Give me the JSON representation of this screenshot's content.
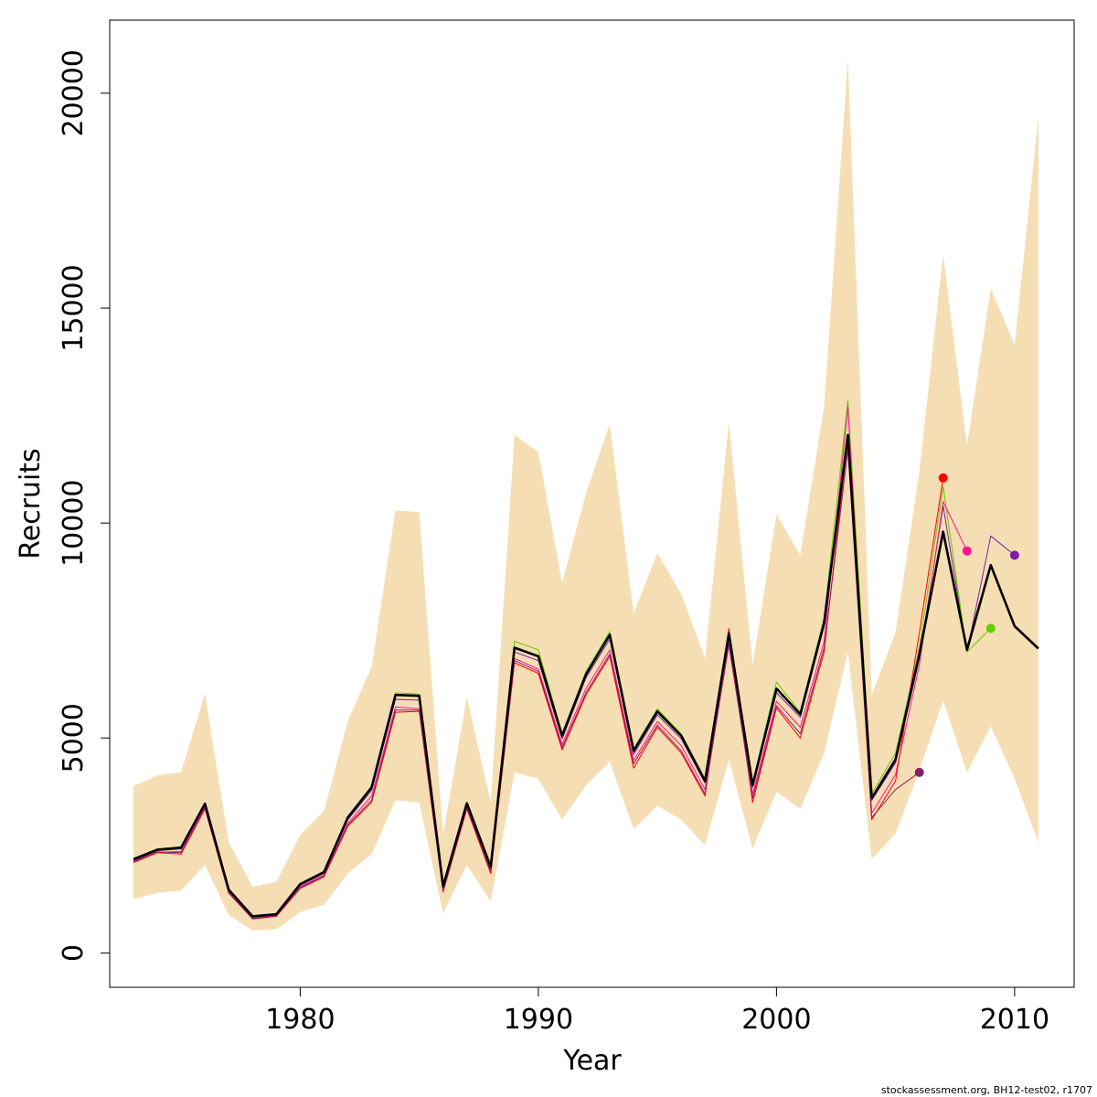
{
  "chart_data": {
    "type": "line",
    "xlabel": "Year",
    "ylabel": "Recruits",
    "xlim": [
      1972,
      2012.5
    ],
    "ylim": [
      -800,
      21700
    ],
    "x_ticks": [
      1980,
      1990,
      2000,
      2010
    ],
    "y_ticks": [
      0,
      5000,
      10000,
      15000,
      20000
    ],
    "grid": false,
    "legend": "none",
    "footer": "stockassessment.org, BH12-test02, r1707",
    "colors": {
      "band": "#f5deb3",
      "main": "#000000",
      "peel_2010": "#7a1fa2",
      "peel_2009": "#66cc00",
      "peel_2008": "#ff1493",
      "peel_2007": "#ff0000",
      "peel_2006": "#8b1a6b"
    },
    "years": [
      1973,
      1974,
      1975,
      1976,
      1977,
      1978,
      1979,
      1980,
      1981,
      1982,
      1983,
      1984,
      1985,
      1986,
      1987,
      1988,
      1989,
      1990,
      1991,
      1992,
      1993,
      1994,
      1995,
      1996,
      1997,
      1998,
      1999,
      2000,
      2001,
      2002,
      2003,
      2004,
      2005,
      2006,
      2007,
      2008,
      2009,
      2010,
      2011
    ],
    "confidence_band": {
      "upper": [
        3880,
        4130,
        4200,
        6030,
        2580,
        1540,
        1650,
        2750,
        3300,
        5400,
        6650,
        10300,
        10250,
        2750,
        5950,
        3500,
        12050,
        11650,
        8600,
        10700,
        12300,
        7900,
        9300,
        8350,
        6850,
        12350,
        6700,
        10200,
        9250,
        12700,
        20800,
        6000,
        7450,
        11200,
        16250,
        11800,
        15450,
        14150,
        19450
      ],
      "lower": [
        1250,
        1400,
        1450,
        2050,
        880,
        520,
        550,
        950,
        1120,
        1850,
        2300,
        3550,
        3500,
        920,
        2050,
        1200,
        4200,
        4050,
        3100,
        3900,
        4450,
        2880,
        3420,
        3100,
        2500,
        4500,
        2430,
        3750,
        3350,
        4650,
        7000,
        2180,
        2780,
        4250,
        5870,
        4200,
        5270,
        4050,
        2580
      ]
    },
    "series": [
      {
        "color_key": "main",
        "x": [
          1973,
          1974,
          1975,
          1976,
          1977,
          1978,
          1979,
          1980,
          1981,
          1982,
          1983,
          1984,
          1985,
          1986,
          1987,
          1988,
          1989,
          1990,
          1991,
          1992,
          1993,
          1994,
          1995,
          1996,
          1997,
          1998,
          1999,
          2000,
          2001,
          2002,
          2003,
          2004,
          2005,
          2006,
          2007,
          2008,
          2009,
          2010,
          2011
        ],
        "values": [
          2180,
          2400,
          2450,
          3470,
          1470,
          850,
          900,
          1600,
          1880,
          3150,
          3850,
          6000,
          5980,
          1550,
          3480,
          2000,
          7100,
          6900,
          5050,
          6480,
          7400,
          4700,
          5620,
          5050,
          4000,
          7430,
          3900,
          6150,
          5550,
          7680,
          12050,
          3600,
          4500,
          6950,
          9800,
          7050,
          9020,
          7600,
          7080
        ],
        "thick": true
      },
      {
        "color_key": "peel_2010",
        "x": [
          1973,
          1974,
          1975,
          1976,
          1977,
          1978,
          1979,
          1980,
          1981,
          1982,
          1983,
          1984,
          1985,
          1986,
          1987,
          1988,
          1989,
          1990,
          1991,
          1992,
          1993,
          1994,
          1995,
          1996,
          1997,
          1998,
          1999,
          2000,
          2001,
          2002,
          2003,
          2004,
          2005,
          2006,
          2007,
          2008,
          2009,
          2010
        ],
        "values": [
          2150,
          2380,
          2420,
          3430,
          1440,
          830,
          880,
          1570,
          1850,
          3100,
          3780,
          5900,
          5880,
          1520,
          3440,
          1970,
          7000,
          6800,
          4980,
          6400,
          7300,
          4620,
          5540,
          4980,
          3950,
          7350,
          3850,
          6050,
          5480,
          7600,
          11900,
          3550,
          4420,
          6850,
          10400,
          7000,
          9700,
          9250
        ]
      },
      {
        "color_key": "peel_2009",
        "x": [
          1973,
          1974,
          1975,
          1976,
          1977,
          1978,
          1979,
          1980,
          1981,
          1982,
          1983,
          1984,
          1985,
          1986,
          1987,
          1988,
          1989,
          1990,
          1991,
          1992,
          1993,
          1994,
          1995,
          1996,
          1997,
          1998,
          1999,
          2000,
          2001,
          2002,
          2003,
          2004,
          2005,
          2006,
          2007,
          2008,
          2009
        ],
        "values": [
          2200,
          2420,
          2470,
          3490,
          1480,
          860,
          910,
          1620,
          1900,
          3180,
          3880,
          6050,
          6020,
          1560,
          3500,
          2010,
          7250,
          7050,
          5100,
          6550,
          7480,
          4750,
          5680,
          5100,
          4050,
          7480,
          3950,
          6300,
          5600,
          7800,
          12850,
          3700,
          4650,
          7100,
          10850,
          7000,
          7550
        ]
      },
      {
        "color_key": "peel_2008",
        "x": [
          1973,
          1974,
          1975,
          1976,
          1977,
          1978,
          1979,
          1980,
          1981,
          1982,
          1983,
          1984,
          1985,
          1986,
          1987,
          1988,
          1989,
          1990,
          1991,
          1992,
          1993,
          1994,
          1995,
          1996,
          1997,
          1998,
          1999,
          2000,
          2001,
          2002,
          2003,
          2004,
          2005,
          2006,
          2007,
          2008
        ],
        "values": [
          2120,
          2340,
          2360,
          3390,
          1410,
          810,
          860,
          1540,
          1810,
          3020,
          3650,
          5720,
          5680,
          1480,
          3400,
          1930,
          6850,
          6600,
          4850,
          6150,
          7050,
          4480,
          5380,
          4820,
          3800,
          7150,
          3700,
          5850,
          5250,
          7250,
          12700,
          3250,
          4150,
          6700,
          10500,
          9350
        ]
      },
      {
        "color_key": "peel_2007",
        "x": [
          1973,
          1974,
          1975,
          1976,
          1977,
          1978,
          1979,
          1980,
          1981,
          1982,
          1983,
          1984,
          1985,
          1986,
          1987,
          1988,
          1989,
          1990,
          1991,
          1992,
          1993,
          1994,
          1995,
          1996,
          1997,
          1998,
          1999,
          2000,
          2001,
          2002,
          2003,
          2004,
          2005,
          2006,
          2007
        ],
        "values": [
          2100,
          2330,
          2300,
          3350,
          1390,
          790,
          850,
          1500,
          1770,
          2950,
          3500,
          5600,
          5620,
          1420,
          3350,
          1850,
          6750,
          6500,
          4720,
          6000,
          6900,
          4300,
          5250,
          4650,
          3650,
          7550,
          3500,
          5700,
          5000,
          7000,
          12000,
          3100,
          4000,
          7450,
          11050
        ]
      },
      {
        "color_key": "peel_2006",
        "x": [
          1973,
          1974,
          1975,
          1976,
          1977,
          1978,
          1979,
          1980,
          1981,
          1982,
          1983,
          1984,
          1985,
          1986,
          1987,
          1988,
          1989,
          1990,
          1991,
          1992,
          1993,
          1994,
          1995,
          1996,
          1997,
          1998,
          1999,
          2000,
          2001,
          2002,
          2003,
          2004,
          2005,
          2006
        ],
        "values": [
          2130,
          2350,
          2330,
          3370,
          1400,
          800,
          855,
          1520,
          1790,
          2980,
          3550,
          5650,
          5650,
          1450,
          3380,
          1880,
          6800,
          6550,
          4780,
          6050,
          6950,
          4400,
          5300,
          4700,
          3700,
          7200,
          3600,
          5750,
          5100,
          7100,
          11700,
          3150,
          3800,
          4200
        ]
      }
    ],
    "endpoints": [
      {
        "x": 2010,
        "y": 9250,
        "color_key": "peel_2010"
      },
      {
        "x": 2009,
        "y": 7550,
        "color_key": "peel_2009"
      },
      {
        "x": 2008,
        "y": 9350,
        "color_key": "peel_2008"
      },
      {
        "x": 2007,
        "y": 11050,
        "color_key": "peel_2007"
      },
      {
        "x": 2006,
        "y": 4200,
        "color_key": "peel_2006"
      }
    ]
  }
}
